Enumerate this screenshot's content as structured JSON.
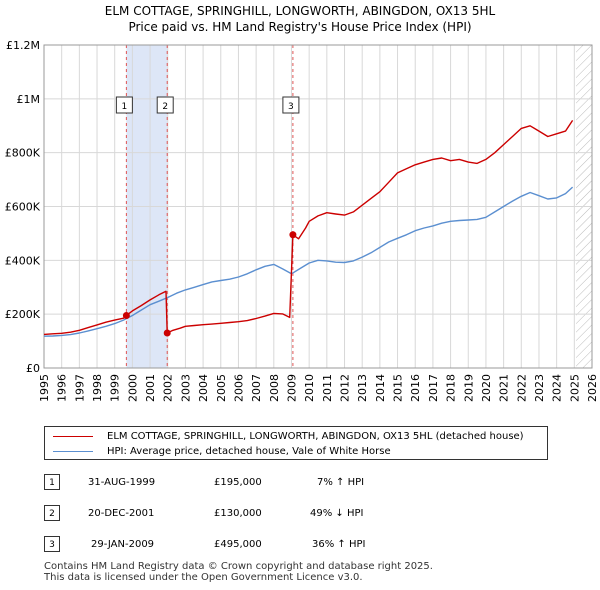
{
  "header": {
    "line1": "ELM COTTAGE, SPRINGHILL, LONGWORTH, ABINGDON, OX13 5HL",
    "line2": "Price paid vs. HM Land Registry's House Price Index (HPI)"
  },
  "colors": {
    "property": "#cc0000",
    "hpi": "#5b8fd0",
    "shade": "#dde6f7",
    "grid": "#d8d8d8",
    "marker_line": "#e05555"
  },
  "chart_data": {
    "type": "line",
    "title": "ELM COTTAGE, SPRINGHILL, LONGWORTH, ABINGDON, OX13 5HL — Price paid vs. HM Land Registry's House Price Index (HPI)",
    "xlim": [
      1995,
      2026
    ],
    "ylim": [
      0,
      1200000
    ],
    "x_ticks": [
      1995,
      1996,
      1997,
      1998,
      1999,
      2000,
      2001,
      2002,
      2003,
      2004,
      2005,
      2006,
      2007,
      2008,
      2009,
      2010,
      2011,
      2012,
      2013,
      2014,
      2015,
      2016,
      2017,
      2018,
      2019,
      2020,
      2021,
      2022,
      2023,
      2024,
      2025,
      2026
    ],
    "y_ticks": [
      {
        "value": 0,
        "label": "£0"
      },
      {
        "value": 200000,
        "label": "£200K"
      },
      {
        "value": 400000,
        "label": "£400K"
      },
      {
        "value": 600000,
        "label": "£600K"
      },
      {
        "value": 800000,
        "label": "£800K"
      },
      {
        "value": 1000000,
        "label": "£1M"
      },
      {
        "value": 1200000,
        "label": "£1.2M"
      }
    ],
    "shaded_ranges": [
      [
        1999.66,
        2001.97
      ]
    ],
    "projection_start": 2025.1,
    "series": [
      {
        "name": "ELM COTTAGE, SPRINGHILL, LONGWORTH, ABINGDON, OX13 5HL (detached house)",
        "color": "#cc0000",
        "x": [
          1995,
          1995.5,
          1996,
          1996.5,
          1997,
          1997.5,
          1998,
          1998.5,
          1999,
          1999.5,
          1999.66,
          2000,
          2000.5,
          2001,
          2001.5,
          2001.9,
          2001.97,
          2002.3,
          2002.7,
          2003,
          2003.5,
          2004,
          2004.5,
          2005,
          2005.5,
          2006,
          2006.5,
          2007,
          2007.5,
          2008,
          2008.5,
          2008.9,
          2009.08,
          2009.4,
          2009.8,
          2010,
          2010.5,
          2011,
          2011.5,
          2012,
          2012.5,
          2013,
          2013.5,
          2014,
          2014.5,
          2015,
          2015.5,
          2016,
          2016.5,
          2017,
          2017.5,
          2018,
          2018.5,
          2019,
          2019.5,
          2020,
          2020.5,
          2021,
          2021.5,
          2022,
          2022.5,
          2023,
          2023.5,
          2024,
          2024.5,
          2024.9
        ],
        "y": [
          125000,
          127000,
          129000,
          133000,
          140000,
          150000,
          160000,
          170000,
          178000,
          185000,
          195000,
          212000,
          232000,
          253000,
          272000,
          285000,
          130000,
          140000,
          148000,
          155000,
          158000,
          161000,
          163000,
          166000,
          169000,
          172000,
          176000,
          184000,
          193000,
          203000,
          201000,
          188000,
          495000,
          480000,
          520000,
          545000,
          565000,
          577000,
          572000,
          568000,
          580000,
          605000,
          630000,
          655000,
          690000,
          725000,
          740000,
          755000,
          765000,
          775000,
          780000,
          770000,
          775000,
          765000,
          760000,
          775000,
          800000,
          830000,
          860000,
          890000,
          900000,
          880000,
          860000,
          870000,
          880000,
          920000
        ]
      },
      {
        "name": "HPI: Average price, detached house, Vale of White Horse",
        "color": "#5b8fd0",
        "x": [
          1995,
          1995.5,
          1996,
          1996.5,
          1997,
          1997.5,
          1998,
          1998.5,
          1999,
          1999.5,
          2000,
          2000.5,
          2001,
          2001.5,
          2002,
          2002.5,
          2003,
          2003.5,
          2004,
          2004.5,
          2005,
          2005.5,
          2006,
          2006.5,
          2007,
          2007.5,
          2008,
          2008.5,
          2009,
          2009.5,
          2010,
          2010.5,
          2011,
          2011.5,
          2012,
          2012.5,
          2013,
          2013.5,
          2014,
          2014.5,
          2015,
          2015.5,
          2016,
          2016.5,
          2017,
          2017.5,
          2018,
          2018.5,
          2019,
          2019.5,
          2020,
          2020.5,
          2021,
          2021.5,
          2022,
          2022.5,
          2023,
          2023.5,
          2024,
          2024.5,
          2024.9
        ],
        "y": [
          118000,
          119000,
          121000,
          124000,
          130000,
          138000,
          146000,
          155000,
          165000,
          178000,
          195000,
          215000,
          235000,
          248000,
          262000,
          278000,
          290000,
          300000,
          310000,
          320000,
          325000,
          330000,
          338000,
          350000,
          365000,
          378000,
          385000,
          368000,
          350000,
          370000,
          390000,
          400000,
          398000,
          393000,
          392000,
          398000,
          412000,
          428000,
          448000,
          468000,
          482000,
          495000,
          510000,
          520000,
          528000,
          538000,
          545000,
          548000,
          550000,
          552000,
          560000,
          580000,
          600000,
          620000,
          638000,
          652000,
          640000,
          628000,
          632000,
          648000,
          672000
        ]
      }
    ],
    "transactions": [
      {
        "num": "1",
        "date": "31-AUG-1999",
        "x": 1999.66,
        "price_value": 195000,
        "price": "£195,000",
        "hpi": "7% ↑ HPI"
      },
      {
        "num": "2",
        "date": "20-DEC-2001",
        "x": 2001.97,
        "price_value": 130000,
        "price": "£130,000",
        "hpi": "49% ↓ HPI"
      },
      {
        "num": "3",
        "date": "29-JAN-2009",
        "x": 2009.08,
        "price_value": 495000,
        "price": "£495,000",
        "hpi": "36% ↑ HPI"
      }
    ]
  },
  "legend": {
    "property_label": "ELM COTTAGE, SPRINGHILL, LONGWORTH, ABINGDON, OX13 5HL (detached house)",
    "hpi_label": "HPI: Average price, detached house, Vale of White Horse"
  },
  "footer": {
    "line1": "Contains HM Land Registry data © Crown copyright and database right 2025.",
    "line2": "This data is licensed under the Open Government Licence v3.0."
  }
}
